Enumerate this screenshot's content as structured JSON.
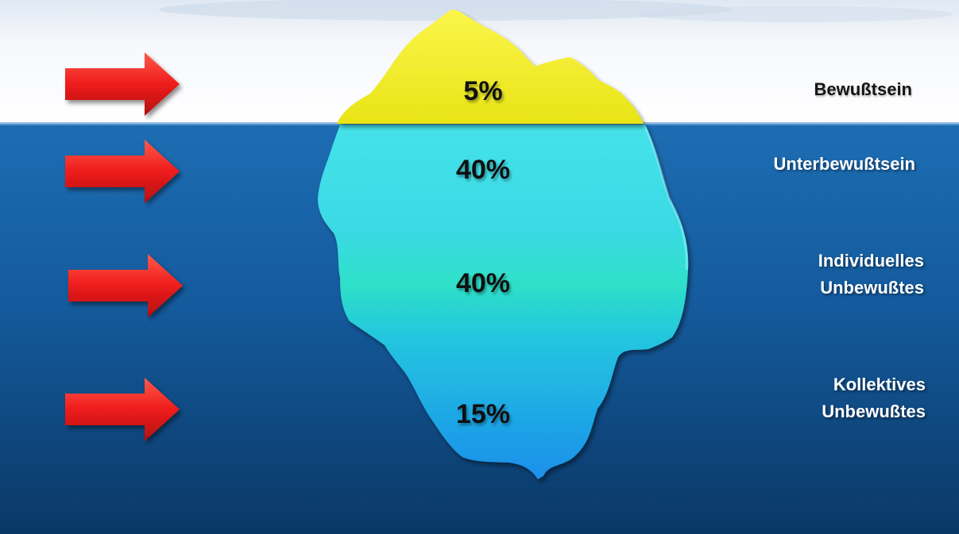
{
  "layers": [
    {
      "percent": "5%",
      "label_lines": [
        "Bewußtsein"
      ],
      "color": "#f0ee1a"
    },
    {
      "percent": "40%",
      "label_lines": [
        "Unterbewußtsein"
      ],
      "color": "#3fd9e6"
    },
    {
      "percent": "40%",
      "label_lines": [
        "Individuelles",
        "Unbewußtes"
      ],
      "color": "#26c7d8"
    },
    {
      "percent": "15%",
      "label_lines": [
        "Kollektives",
        "Unbewußtes"
      ],
      "color": "#1f9be8"
    }
  ],
  "colors": {
    "sky": "#ffffff",
    "water_top": "#1a63a8",
    "water_bottom": "#0b3a6a",
    "arrow": "#ee1c1c"
  },
  "icons": [
    "right-arrow-icon",
    "right-arrow-icon",
    "right-arrow-icon",
    "right-arrow-icon"
  ]
}
